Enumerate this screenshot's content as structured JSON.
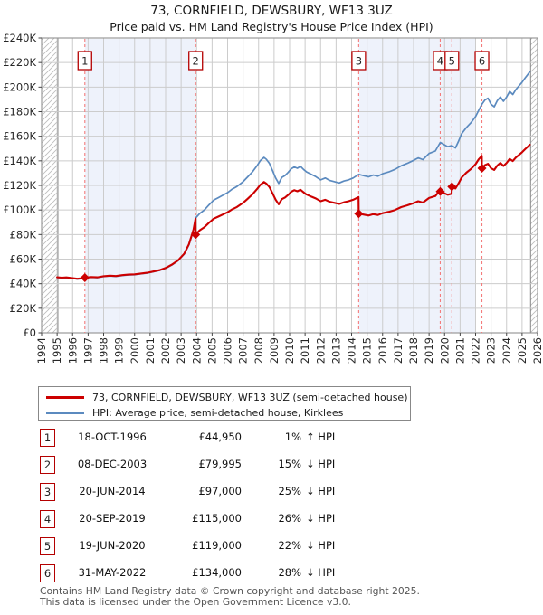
{
  "header": {
    "title": "73, CORNFIELD, DEWSBURY, WF13 3UZ",
    "subtitle": "Price paid vs. HM Land Registry's House Price Index (HPI)"
  },
  "chart_data": {
    "type": "line",
    "title": "73, CORNFIELD, DEWSBURY, WF13 3UZ",
    "subtitle": "Price paid vs. HM Land Registry's House Price Index (HPI)",
    "x_range": [
      1994,
      2026
    ],
    "y_range": [
      0,
      240000
    ],
    "grid": true,
    "x_ticks": [
      1994,
      1995,
      1996,
      1997,
      1998,
      1999,
      2000,
      2001,
      2002,
      2003,
      2004,
      2005,
      2006,
      2007,
      2008,
      2009,
      2010,
      2011,
      2012,
      2013,
      2014,
      2015,
      2016,
      2017,
      2018,
      2019,
      2020,
      2021,
      2022,
      2023,
      2024,
      2025,
      2026
    ],
    "y_ticks": [
      {
        "value": 0,
        "label": "£0"
      },
      {
        "value": 20000,
        "label": "£20K"
      },
      {
        "value": 40000,
        "label": "£40K"
      },
      {
        "value": 60000,
        "label": "£60K"
      },
      {
        "value": 80000,
        "label": "£80K"
      },
      {
        "value": 100000,
        "label": "£100K"
      },
      {
        "value": 120000,
        "label": "£120K"
      },
      {
        "value": 140000,
        "label": "£140K"
      },
      {
        "value": 160000,
        "label": "£160K"
      },
      {
        "value": 180000,
        "label": "£180K"
      },
      {
        "value": 200000,
        "label": "£200K"
      },
      {
        "value": 220000,
        "label": "£220K"
      },
      {
        "value": 240000,
        "label": "£240K"
      }
    ],
    "colors": {
      "property_line": "#cc0000",
      "hpi_line": "#5b8abf",
      "shaded_band": "#eef2fb",
      "grid": "#cccccc",
      "border": "#999999",
      "sale_dashed_line": "#f47c7c",
      "hatch": "#bbbbbb",
      "badge_border": "#b40000"
    },
    "shaded_bands": [
      [
        1996.79,
        2003.94
      ],
      [
        2014.46,
        2022.0
      ]
    ],
    "no_data_hatch_bands": [
      [
        1994,
        1995.05
      ],
      [
        2025.55,
        2026
      ]
    ],
    "sales": [
      {
        "n": "1",
        "x": 1996.79,
        "price": 44950
      },
      {
        "n": "2",
        "x": 2003.94,
        "price": 79995
      },
      {
        "n": "3",
        "x": 2014.46,
        "price": 97000
      },
      {
        "n": "4",
        "x": 2019.72,
        "price": 115000
      },
      {
        "n": "5",
        "x": 2020.47,
        "price": 119000
      },
      {
        "n": "6",
        "x": 2022.41,
        "price": 134000
      }
    ],
    "series": [
      {
        "name": "73, CORNFIELD, DEWSBURY, WF13 3UZ (semi-detached house)",
        "color": "#cc0000",
        "width": 2.1,
        "points": [
          [
            1995.0,
            45200
          ],
          [
            1995.3,
            44900
          ],
          [
            1995.6,
            45100
          ],
          [
            1996.0,
            44500
          ],
          [
            1996.3,
            44000
          ],
          [
            1996.6,
            44400
          ],
          [
            1996.79,
            44950
          ],
          [
            1997.2,
            45400
          ],
          [
            1997.6,
            45200
          ],
          [
            1998.0,
            46100
          ],
          [
            1998.4,
            46500
          ],
          [
            1998.8,
            46200
          ],
          [
            1999.2,
            47000
          ],
          [
            1999.6,
            47400
          ],
          [
            2000.0,
            47600
          ],
          [
            2000.4,
            48300
          ],
          [
            2000.8,
            48900
          ],
          [
            2001.2,
            49900
          ],
          [
            2001.6,
            51000
          ],
          [
            2002.0,
            52800
          ],
          [
            2002.4,
            55500
          ],
          [
            2002.8,
            59000
          ],
          [
            2003.2,
            64500
          ],
          [
            2003.5,
            72000
          ],
          [
            2003.8,
            84000
          ],
          [
            2003.93,
            93000
          ],
          [
            2003.94,
            79995
          ],
          [
            2004.2,
            83500
          ],
          [
            2004.5,
            86000
          ],
          [
            2004.8,
            89500
          ],
          [
            2005.1,
            92900
          ],
          [
            2005.4,
            94600
          ],
          [
            2005.7,
            96400
          ],
          [
            2006.0,
            98100
          ],
          [
            2006.3,
            100600
          ],
          [
            2006.6,
            102400
          ],
          [
            2007.0,
            105800
          ],
          [
            2007.3,
            109200
          ],
          [
            2007.6,
            112700
          ],
          [
            2007.9,
            117000
          ],
          [
            2008.1,
            120400
          ],
          [
            2008.35,
            122800
          ],
          [
            2008.5,
            121500
          ],
          [
            2008.7,
            118700
          ],
          [
            2008.9,
            113500
          ],
          [
            2009.1,
            108400
          ],
          [
            2009.3,
            104600
          ],
          [
            2009.5,
            108800
          ],
          [
            2009.7,
            110100
          ],
          [
            2009.9,
            112200
          ],
          [
            2010.1,
            114800
          ],
          [
            2010.3,
            116100
          ],
          [
            2010.5,
            115200
          ],
          [
            2010.7,
            116500
          ],
          [
            2010.9,
            114400
          ],
          [
            2011.1,
            112600
          ],
          [
            2011.4,
            110900
          ],
          [
            2011.7,
            109300
          ],
          [
            2012.0,
            107100
          ],
          [
            2012.3,
            108300
          ],
          [
            2012.6,
            106600
          ],
          [
            2012.9,
            105800
          ],
          [
            2013.2,
            104900
          ],
          [
            2013.5,
            106200
          ],
          [
            2013.8,
            107100
          ],
          [
            2014.1,
            108300
          ],
          [
            2014.45,
            110500
          ],
          [
            2014.46,
            97000
          ],
          [
            2014.8,
            96200
          ],
          [
            2015.1,
            95500
          ],
          [
            2015.4,
            96600
          ],
          [
            2015.7,
            95900
          ],
          [
            2016.0,
            97400
          ],
          [
            2016.4,
            98500
          ],
          [
            2016.8,
            100000
          ],
          [
            2017.2,
            102300
          ],
          [
            2017.6,
            103800
          ],
          [
            2018.0,
            105600
          ],
          [
            2018.3,
            107100
          ],
          [
            2018.6,
            106000
          ],
          [
            2019.0,
            109800
          ],
          [
            2019.4,
            111300
          ],
          [
            2019.7,
            116000
          ],
          [
            2019.72,
            115000
          ],
          [
            2020.0,
            113500
          ],
          [
            2020.2,
            112400
          ],
          [
            2020.45,
            113200
          ],
          [
            2020.47,
            119000
          ],
          [
            2020.7,
            117500
          ],
          [
            2020.9,
            121700
          ],
          [
            2021.1,
            126400
          ],
          [
            2021.4,
            130300
          ],
          [
            2021.7,
            133400
          ],
          [
            2022.0,
            137300
          ],
          [
            2022.2,
            141200
          ],
          [
            2022.4,
            144000
          ],
          [
            2022.41,
            134000
          ],
          [
            2022.6,
            136500
          ],
          [
            2022.8,
            137600
          ],
          [
            2023.0,
            134000
          ],
          [
            2023.2,
            132600
          ],
          [
            2023.4,
            136200
          ],
          [
            2023.6,
            138300
          ],
          [
            2023.8,
            135800
          ],
          [
            2024.0,
            138300
          ],
          [
            2024.2,
            141600
          ],
          [
            2024.4,
            139800
          ],
          [
            2024.6,
            142700
          ],
          [
            2024.8,
            144800
          ],
          [
            2025.0,
            147000
          ],
          [
            2025.2,
            149500
          ],
          [
            2025.35,
            151300
          ],
          [
            2025.5,
            153100
          ]
        ]
      },
      {
        "name": "HPI: Average price, semi-detached house, Kirklees",
        "color": "#5b8abf",
        "width": 1.7,
        "points": [
          [
            1995.0,
            45000
          ],
          [
            1995.3,
            44700
          ],
          [
            1995.6,
            44900
          ],
          [
            1996.0,
            44300
          ],
          [
            1996.3,
            43800
          ],
          [
            1996.6,
            44200
          ],
          [
            1996.79,
            44600
          ],
          [
            1997.2,
            45100
          ],
          [
            1997.6,
            44900
          ],
          [
            1998.0,
            45800
          ],
          [
            1998.4,
            46200
          ],
          [
            1998.8,
            45900
          ],
          [
            1999.2,
            46700
          ],
          [
            1999.6,
            47100
          ],
          [
            2000.0,
            47300
          ],
          [
            2000.4,
            48000
          ],
          [
            2000.8,
            48600
          ],
          [
            2001.2,
            49600
          ],
          [
            2001.6,
            50700
          ],
          [
            2002.0,
            52500
          ],
          [
            2002.4,
            55200
          ],
          [
            2002.8,
            58700
          ],
          [
            2003.2,
            64100
          ],
          [
            2003.5,
            71600
          ],
          [
            2003.8,
            83500
          ],
          [
            2003.94,
            93500
          ],
          [
            2004.2,
            97100
          ],
          [
            2004.5,
            100000
          ],
          [
            2004.8,
            104100
          ],
          [
            2005.1,
            108000
          ],
          [
            2005.4,
            110000
          ],
          [
            2005.7,
            112100
          ],
          [
            2006.0,
            114100
          ],
          [
            2006.3,
            117000
          ],
          [
            2006.6,
            119100
          ],
          [
            2007.0,
            123000
          ],
          [
            2007.3,
            127000
          ],
          [
            2007.6,
            131000
          ],
          [
            2007.9,
            136000
          ],
          [
            2008.1,
            140000
          ],
          [
            2008.35,
            142800
          ],
          [
            2008.5,
            141300
          ],
          [
            2008.7,
            138000
          ],
          [
            2008.9,
            132000
          ],
          [
            2009.1,
            126000
          ],
          [
            2009.3,
            121600
          ],
          [
            2009.5,
            126500
          ],
          [
            2009.7,
            128000
          ],
          [
            2009.9,
            130500
          ],
          [
            2010.1,
            133500
          ],
          [
            2010.3,
            135000
          ],
          [
            2010.5,
            134000
          ],
          [
            2010.7,
            135500
          ],
          [
            2010.9,
            133000
          ],
          [
            2011.1,
            131000
          ],
          [
            2011.4,
            129000
          ],
          [
            2011.7,
            127100
          ],
          [
            2012.0,
            124500
          ],
          [
            2012.3,
            126000
          ],
          [
            2012.6,
            124000
          ],
          [
            2012.9,
            123000
          ],
          [
            2013.2,
            122000
          ],
          [
            2013.5,
            123500
          ],
          [
            2013.8,
            124500
          ],
          [
            2014.1,
            126000
          ],
          [
            2014.46,
            129000
          ],
          [
            2014.8,
            127900
          ],
          [
            2015.1,
            127000
          ],
          [
            2015.4,
            128400
          ],
          [
            2015.7,
            127500
          ],
          [
            2016.0,
            129500
          ],
          [
            2016.4,
            131000
          ],
          [
            2016.8,
            133000
          ],
          [
            2017.2,
            136000
          ],
          [
            2017.6,
            138000
          ],
          [
            2018.0,
            140400
          ],
          [
            2018.3,
            142400
          ],
          [
            2018.6,
            141000
          ],
          [
            2019.0,
            146000
          ],
          [
            2019.4,
            148000
          ],
          [
            2019.72,
            155000
          ],
          [
            2020.0,
            153000
          ],
          [
            2020.2,
            151500
          ],
          [
            2020.47,
            152500
          ],
          [
            2020.7,
            150500
          ],
          [
            2020.9,
            156000
          ],
          [
            2021.1,
            162000
          ],
          [
            2021.4,
            167000
          ],
          [
            2021.7,
            171000
          ],
          [
            2022.0,
            176000
          ],
          [
            2022.2,
            181000
          ],
          [
            2022.41,
            186000
          ],
          [
            2022.6,
            189500
          ],
          [
            2022.8,
            191000
          ],
          [
            2023.0,
            186000
          ],
          [
            2023.2,
            184000
          ],
          [
            2023.4,
            189000
          ],
          [
            2023.6,
            192000
          ],
          [
            2023.8,
            188500
          ],
          [
            2024.0,
            192000
          ],
          [
            2024.2,
            196500
          ],
          [
            2024.4,
            194000
          ],
          [
            2024.6,
            198000
          ],
          [
            2024.8,
            201000
          ],
          [
            2025.0,
            204000
          ],
          [
            2025.2,
            207500
          ],
          [
            2025.35,
            210000
          ],
          [
            2025.5,
            212500
          ]
        ]
      }
    ],
    "legend_position": "below"
  },
  "legend": {
    "entries": [
      {
        "label": "73, CORNFIELD, DEWSBURY, WF13 3UZ (semi-detached house)"
      },
      {
        "label": "HPI: Average price, semi-detached house, Kirklees"
      }
    ]
  },
  "table": {
    "rows": [
      {
        "n": "1",
        "date": "18-OCT-1996",
        "price": "£44,950",
        "pct": "1%",
        "rel": "↑ HPI"
      },
      {
        "n": "2",
        "date": "08-DEC-2003",
        "price": "£79,995",
        "pct": "15%",
        "rel": "↓ HPI"
      },
      {
        "n": "3",
        "date": "20-JUN-2014",
        "price": "£97,000",
        "pct": "25%",
        "rel": "↓ HPI"
      },
      {
        "n": "4",
        "date": "20-SEP-2019",
        "price": "£115,000",
        "pct": "26%",
        "rel": "↓ HPI"
      },
      {
        "n": "5",
        "date": "19-JUN-2020",
        "price": "£119,000",
        "pct": "22%",
        "rel": "↓ HPI"
      },
      {
        "n": "6",
        "date": "31-MAY-2022",
        "price": "£134,000",
        "pct": "28%",
        "rel": "↓ HPI"
      }
    ]
  },
  "footer": {
    "line1": "Contains HM Land Registry data © Crown copyright and database right 2025.",
    "line2": "This data is licensed under the Open Government Licence v3.0."
  }
}
